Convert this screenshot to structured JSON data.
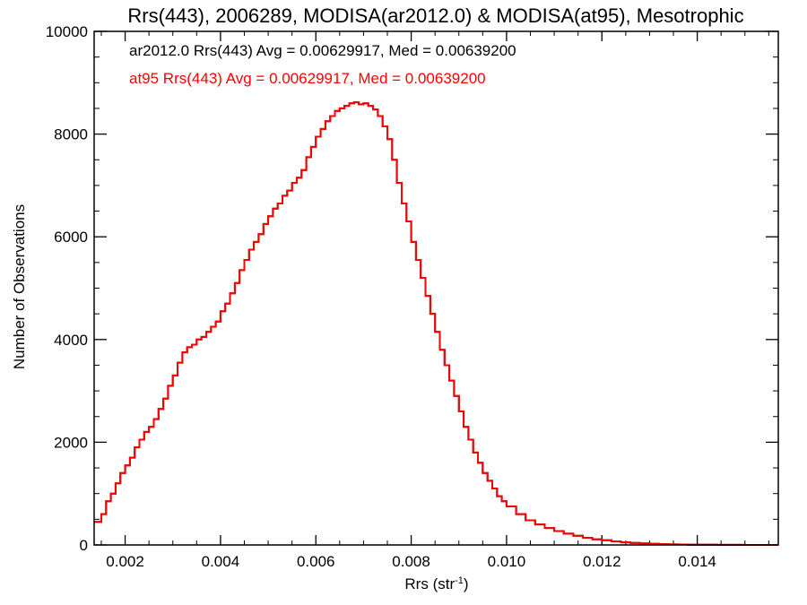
{
  "chart_data": {
    "type": "line",
    "title": "Rrs(443), 2006289, MODISA(ar2012.0) & MODISA(at95), Mesotrophic",
    "xlabel": "Rrs (str",
    "xlabel_sup": "-1",
    "xlabel_end": ")",
    "ylabel": "Number of Observations",
    "xlim": [
      0.00135,
      0.0157
    ],
    "ylim": [
      0,
      10000
    ],
    "x_ticks": [
      0.002,
      0.004,
      0.006,
      0.008,
      0.01,
      0.012,
      0.014
    ],
    "x_tick_labels": [
      "0.002",
      "0.004",
      "0.006",
      "0.008",
      "0.010",
      "0.012",
      "0.014"
    ],
    "y_ticks": [
      0,
      2000,
      4000,
      6000,
      8000,
      10000
    ],
    "y_tick_labels": [
      "0",
      "2000",
      "4000",
      "6000",
      "8000",
      "10000"
    ],
    "annotations": [
      {
        "text": "ar2012.0 Rrs(443) Avg = 0.00629917, Med = 0.00639200",
        "color": "#000000"
      },
      {
        "text": "at95 Rrs(443) Avg = 0.00629917, Med = 0.00639200",
        "color": "#ff0000"
      }
    ],
    "series": [
      {
        "name": "ar2012.0",
        "color": "#000000",
        "x": [
          0.00135,
          0.0015,
          0.0016,
          0.0017,
          0.0018,
          0.0019,
          0.002,
          0.0021,
          0.0022,
          0.0023,
          0.0024,
          0.0025,
          0.0026,
          0.0027,
          0.0028,
          0.0029,
          0.003,
          0.0031,
          0.0032,
          0.0033,
          0.0034,
          0.0035,
          0.0036,
          0.0037,
          0.0038,
          0.0039,
          0.004,
          0.0041,
          0.0042,
          0.0043,
          0.0044,
          0.0045,
          0.0046,
          0.0047,
          0.0048,
          0.0049,
          0.005,
          0.0051,
          0.0052,
          0.0053,
          0.0054,
          0.0055,
          0.0056,
          0.0057,
          0.0058,
          0.0059,
          0.006,
          0.0061,
          0.0062,
          0.0063,
          0.0064,
          0.0065,
          0.0066,
          0.0067,
          0.0068,
          0.0069,
          0.007,
          0.0071,
          0.0072,
          0.0073,
          0.0074,
          0.0075,
          0.0076,
          0.0077,
          0.0078,
          0.0079,
          0.008,
          0.0081,
          0.0082,
          0.0083,
          0.0084,
          0.0085,
          0.0086,
          0.0087,
          0.0088,
          0.0089,
          0.009,
          0.0091,
          0.0092,
          0.0093,
          0.0094,
          0.0095,
          0.0096,
          0.0097,
          0.0098,
          0.0099,
          0.01,
          0.0102,
          0.0104,
          0.0106,
          0.0108,
          0.011,
          0.0112,
          0.0114,
          0.0116,
          0.0118,
          0.012,
          0.0122,
          0.0124,
          0.0126,
          0.0128,
          0.013,
          0.0132,
          0.0134,
          0.0136,
          0.0138,
          0.014,
          0.0142,
          0.0144,
          0.0146,
          0.0148,
          0.015,
          0.0152,
          0.0154,
          0.0157
        ],
        "y": [
          450,
          600,
          850,
          1000,
          1200,
          1400,
          1550,
          1700,
          1900,
          2050,
          2200,
          2300,
          2450,
          2650,
          2850,
          3100,
          3300,
          3550,
          3750,
          3850,
          3900,
          4000,
          4050,
          4150,
          4250,
          4350,
          4550,
          4700,
          4900,
          5100,
          5350,
          5550,
          5750,
          5900,
          6050,
          6250,
          6400,
          6550,
          6650,
          6800,
          6900,
          7050,
          7150,
          7300,
          7550,
          7750,
          7950,
          8100,
          8250,
          8350,
          8450,
          8500,
          8550,
          8600,
          8620,
          8580,
          8600,
          8550,
          8480,
          8350,
          8150,
          7900,
          7500,
          7050,
          6650,
          6300,
          5900,
          5550,
          5200,
          4850,
          4500,
          4150,
          3800,
          3500,
          3200,
          2900,
          2600,
          2300,
          2050,
          1800,
          1600,
          1400,
          1250,
          1100,
          950,
          850,
          750,
          600,
          480,
          400,
          330,
          270,
          220,
          180,
          140,
          110,
          90,
          70,
          50,
          40,
          30,
          22,
          15,
          10,
          8,
          6,
          4,
          3,
          2,
          1,
          1,
          0,
          0,
          0,
          0
        ]
      },
      {
        "name": "at95",
        "color": "#ff0000",
        "x": [
          0.00135,
          0.0015,
          0.0016,
          0.0017,
          0.0018,
          0.0019,
          0.002,
          0.0021,
          0.0022,
          0.0023,
          0.0024,
          0.0025,
          0.0026,
          0.0027,
          0.0028,
          0.0029,
          0.003,
          0.0031,
          0.0032,
          0.0033,
          0.0034,
          0.0035,
          0.0036,
          0.0037,
          0.0038,
          0.0039,
          0.004,
          0.0041,
          0.0042,
          0.0043,
          0.0044,
          0.0045,
          0.0046,
          0.0047,
          0.0048,
          0.0049,
          0.005,
          0.0051,
          0.0052,
          0.0053,
          0.0054,
          0.0055,
          0.0056,
          0.0057,
          0.0058,
          0.0059,
          0.006,
          0.0061,
          0.0062,
          0.0063,
          0.0064,
          0.0065,
          0.0066,
          0.0067,
          0.0068,
          0.0069,
          0.007,
          0.0071,
          0.0072,
          0.0073,
          0.0074,
          0.0075,
          0.0076,
          0.0077,
          0.0078,
          0.0079,
          0.008,
          0.0081,
          0.0082,
          0.0083,
          0.0084,
          0.0085,
          0.0086,
          0.0087,
          0.0088,
          0.0089,
          0.009,
          0.0091,
          0.0092,
          0.0093,
          0.0094,
          0.0095,
          0.0096,
          0.0097,
          0.0098,
          0.0099,
          0.01,
          0.0102,
          0.0104,
          0.0106,
          0.0108,
          0.011,
          0.0112,
          0.0114,
          0.0116,
          0.0118,
          0.012,
          0.0122,
          0.0124,
          0.0126,
          0.0128,
          0.013,
          0.0132,
          0.0134,
          0.0136,
          0.0138,
          0.014,
          0.0142,
          0.0144,
          0.0146,
          0.0148,
          0.015,
          0.0152,
          0.0154,
          0.0157
        ],
        "y": [
          450,
          600,
          850,
          1000,
          1200,
          1400,
          1550,
          1700,
          1900,
          2050,
          2200,
          2300,
          2450,
          2650,
          2850,
          3100,
          3300,
          3550,
          3750,
          3850,
          3900,
          4000,
          4050,
          4150,
          4250,
          4350,
          4550,
          4700,
          4900,
          5100,
          5350,
          5550,
          5750,
          5900,
          6050,
          6250,
          6400,
          6550,
          6650,
          6800,
          6900,
          7050,
          7150,
          7300,
          7550,
          7750,
          7950,
          8100,
          8250,
          8350,
          8450,
          8500,
          8550,
          8600,
          8620,
          8580,
          8600,
          8550,
          8480,
          8350,
          8150,
          7900,
          7500,
          7050,
          6650,
          6300,
          5900,
          5550,
          5200,
          4850,
          4500,
          4150,
          3800,
          3500,
          3200,
          2900,
          2600,
          2300,
          2050,
          1800,
          1600,
          1400,
          1250,
          1100,
          950,
          850,
          750,
          600,
          480,
          400,
          330,
          270,
          220,
          180,
          140,
          110,
          90,
          70,
          50,
          40,
          30,
          22,
          15,
          10,
          8,
          6,
          4,
          3,
          2,
          1,
          1,
          0,
          0,
          0,
          0
        ]
      }
    ]
  }
}
